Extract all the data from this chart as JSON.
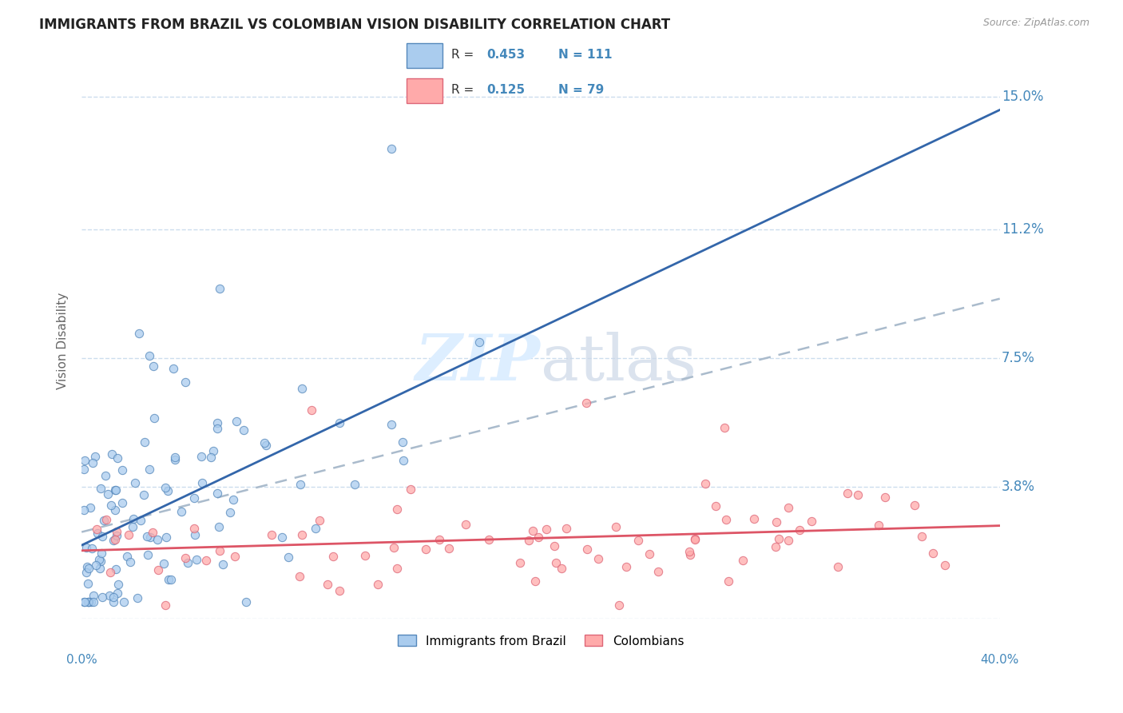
{
  "title": "IMMIGRANTS FROM BRAZIL VS COLOMBIAN VISION DISABILITY CORRELATION CHART",
  "source": "Source: ZipAtlas.com",
  "ylabel": "Vision Disability",
  "legend_label1": "Immigrants from Brazil",
  "legend_label2": "Colombians",
  "r1": 0.453,
  "n1": 111,
  "r2": 0.125,
  "n2": 79,
  "xmin": 0.0,
  "xmax": 0.4,
  "ymin": 0.0,
  "ymax": 0.16,
  "yticks": [
    0.0,
    0.038,
    0.075,
    0.112,
    0.15
  ],
  "ytick_labels": [
    "",
    "3.8%",
    "7.5%",
    "11.2%",
    "15.0%"
  ],
  "xticks": [
    0.0,
    0.1,
    0.2,
    0.3,
    0.4
  ],
  "xtick_labels": [
    "0.0%",
    "",
    "",
    "",
    "40.0%"
  ],
  "color_brazil": "#aaccee",
  "color_colombia": "#ffaaaa",
  "color_brazil_edge": "#5588bb",
  "color_colombia_edge": "#dd6677",
  "color_brazil_line": "#3366aa",
  "color_colombia_line": "#dd5566",
  "color_dashed": "#aabbcc",
  "background_color": "#ffffff",
  "grid_color": "#ccddee",
  "title_color": "#222222",
  "axis_label_color": "#4488bb",
  "watermark_color": "#ddeeff",
  "seed": 42
}
